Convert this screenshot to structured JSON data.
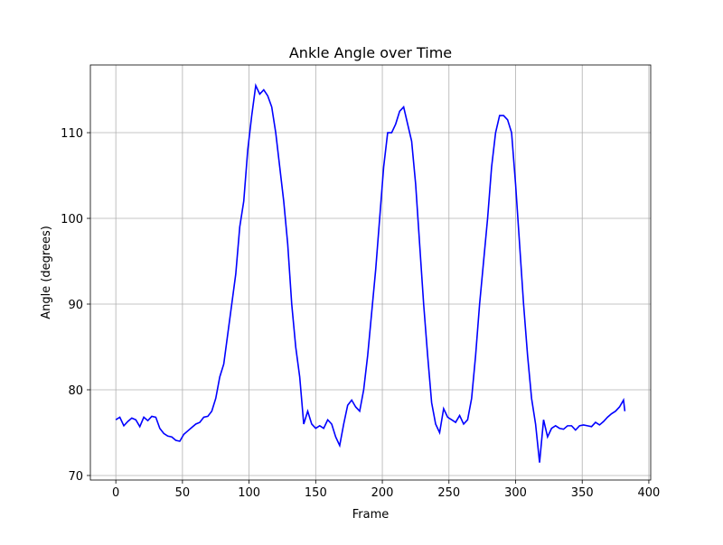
{
  "chart_data": {
    "type": "line",
    "title": "Ankle Angle over Time",
    "x_label": "Frame",
    "y_label": "Angle (degrees)",
    "x": [
      0,
      3,
      6,
      9,
      12,
      15,
      18,
      21,
      24,
      27,
      30,
      33,
      36,
      39,
      42,
      45,
      48,
      51,
      54,
      57,
      60,
      63,
      66,
      69,
      72,
      75,
      78,
      81,
      84,
      87,
      90,
      93,
      96,
      99,
      102,
      105,
      108,
      111,
      114,
      117,
      120,
      123,
      126,
      129,
      132,
      135,
      138,
      141,
      144,
      147,
      150,
      153,
      156,
      159,
      162,
      165,
      168,
      171,
      174,
      177,
      180,
      183,
      186,
      189,
      192,
      195,
      198,
      201,
      204,
      207,
      210,
      213,
      216,
      219,
      222,
      225,
      228,
      231,
      234,
      237,
      240,
      243,
      246,
      249,
      252,
      255,
      258,
      261,
      264,
      267,
      270,
      273,
      276,
      279,
      282,
      285,
      288,
      291,
      294,
      297,
      300,
      303,
      306,
      309,
      312,
      315,
      318,
      321,
      324,
      327,
      330,
      333,
      336,
      339,
      342,
      345,
      348,
      351,
      354,
      357,
      360,
      363,
      366,
      369,
      372,
      375,
      378,
      381,
      382
    ],
    "values": [
      76.5,
      76.8,
      75.8,
      76.3,
      76.7,
      76.5,
      75.7,
      76.8,
      76.4,
      76.9,
      76.8,
      75.5,
      74.9,
      74.6,
      74.5,
      74.1,
      74.0,
      74.8,
      75.2,
      75.6,
      76.0,
      76.2,
      76.8,
      76.9,
      77.5,
      79.0,
      81.5,
      83,
      86.5,
      90,
      93.5,
      99,
      102,
      108,
      112,
      115.5,
      114.5,
      115,
      114.3,
      113,
      110,
      106,
      102,
      97,
      90,
      85,
      81.5,
      76,
      77.5,
      76,
      75.5,
      75.8,
      75.5,
      76.5,
      76,
      74.5,
      73.5,
      76,
      78.2,
      78.8,
      78,
      77.5,
      80,
      84,
      89,
      94,
      100,
      106,
      110,
      110,
      111,
      112.5,
      113,
      111,
      109,
      104,
      97,
      90,
      84,
      78.5,
      76,
      75,
      77.8,
      76.8,
      76.5,
      76.2,
      77,
      76,
      76.5,
      79,
      84,
      90,
      95,
      100,
      106,
      110,
      112,
      112,
      111.5,
      110,
      104,
      97,
      90,
      84,
      79,
      76,
      71.5,
      76.5,
      74.5,
      75.5,
      75.8,
      75.5,
      75.4,
      75.8,
      75.8,
      75.3,
      75.8,
      75.9,
      75.8,
      75.7,
      76.2,
      75.9,
      76.3,
      76.8,
      77.2,
      77.5,
      78,
      78.8,
      77.5
    ],
    "color": "#0000ff",
    "xlim": [
      -19.1,
      401.4
    ],
    "xticks": [
      0,
      50,
      100,
      150,
      200,
      250,
      300,
      350,
      400
    ],
    "ylim": [
      69.47,
      117.9
    ],
    "yticks": [
      70,
      80,
      90,
      100,
      110
    ],
    "grid": true
  }
}
